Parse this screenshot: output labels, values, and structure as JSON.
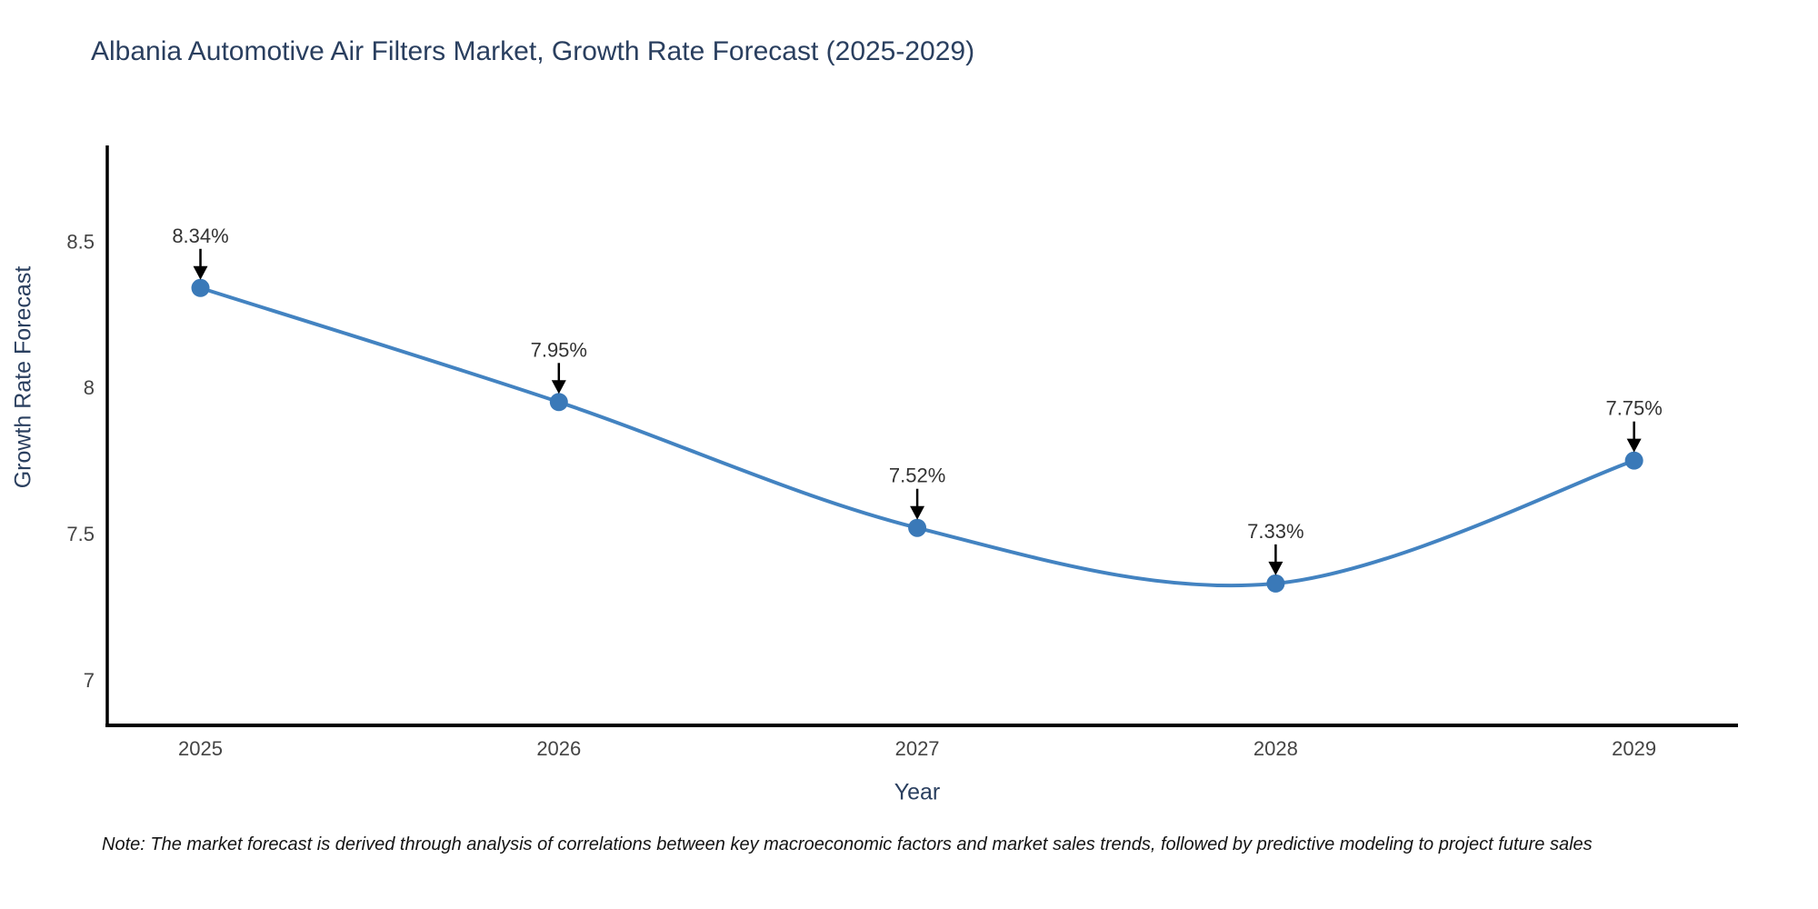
{
  "title": "Albania Automotive Air Filters Market, Growth Rate Forecast (2025-2029)",
  "note": "Note: The market forecast is derived through analysis of correlations between key macroeconomic factors and market sales trends, followed by predictive modeling to project future sales",
  "chart_data": {
    "type": "line",
    "title": "Albania Automotive Air Filters Market, Growth Rate Forecast (2025-2029)",
    "xlabel": "Year",
    "ylabel": "Growth Rate Forecast",
    "x": [
      2025,
      2026,
      2027,
      2028,
      2029
    ],
    "values": [
      8.34,
      7.95,
      7.52,
      7.33,
      7.75
    ],
    "point_labels": [
      "8.34%",
      "7.95%",
      "7.52%",
      "7.33%",
      "7.75%"
    ],
    "x_tick_labels": [
      "2025",
      "2026",
      "2027",
      "2028",
      "2029"
    ],
    "y_ticks": [
      7,
      7.5,
      8,
      8.5
    ],
    "y_tick_labels": [
      "7",
      "7.5",
      "8",
      "8.5"
    ],
    "xlim": [
      2024.74,
      2029.29
    ],
    "ylim": [
      6.845,
      8.827
    ],
    "grid": false,
    "legend": "none",
    "line_shape": "spline",
    "colors": {
      "line": "#4383c1",
      "marker": "#3a79b8",
      "axis": "#000000",
      "tick_label": "#444444",
      "annotation_text": "#333333",
      "arrow": "#000000",
      "title": "#2a3f5f"
    }
  }
}
